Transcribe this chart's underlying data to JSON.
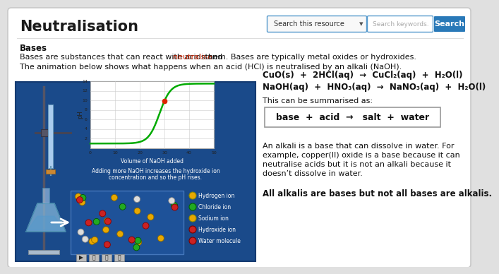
{
  "title": "Neutralisation",
  "search_box_text": "Search this resource",
  "search_arrow": "▾",
  "search_keywords_text": "Search keywords.",
  "search_btn_text": "Search",
  "search_btn_color": "#2979b8",
  "section_bold": "Bases",
  "line1a": "Bases are substances that can react with acids and ",
  "neutralise_word": "neutralise",
  "neutralise_color": "#cc2200",
  "line1b": " them. Bases are typically metal oxides or hydroxides.",
  "line2": "The animation below shows what happens when an acid (HCl) is neutralised by an alkali (NaOH).",
  "eq1": "CuO(s)  +  2HCl(aq)  →  CuCl₂(aq)  +  H₂O(l)",
  "eq2": "NaOH(aq)  +  HNO₃(aq)  →  NaNO₃(aq)  +  H₂O(l)",
  "summary_label": "This can be summarised as:",
  "summary_box_text": "base  +  acid  →   salt  +  water",
  "alkali_lines": [
    "An alkali is a base that can dissolve in water. For",
    "example, copper(II) oxide is a base because it can",
    "neutralise acids but it is not an alkali because it",
    "doesn’t dissolve in water."
  ],
  "bold_conclusion": "All alkalis are bases but not all bases are alkalis.",
  "anim_bg": "#1a4a8a",
  "graph_line_color": "#00aa00",
  "graph_dot_color": "#dd2200",
  "legend_items": [
    "Hydrogen ion",
    "Chloride ion",
    "Sodium ion",
    "Hydroxide ion",
    "Water molecule"
  ],
  "legend_colors": [
    "#e8a800",
    "#22aa22",
    "#e8a800",
    "#cc2222",
    "#cc2222"
  ],
  "legend_outline_colors": [
    "#888800",
    "#006600",
    "#888800",
    "#770000",
    "#770000"
  ],
  "page_bg": "#e0e0e0",
  "card_bg": "#ffffff",
  "card_border": "#c8c8c8"
}
